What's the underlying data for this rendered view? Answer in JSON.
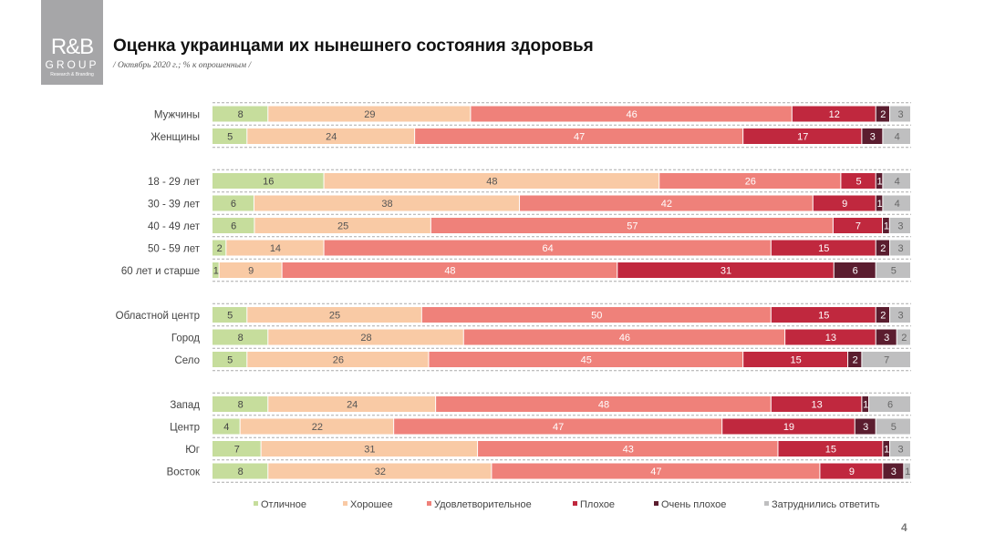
{
  "logo": {
    "line1": "R&B",
    "line2": "GROUP",
    "line3": "Research & Branding"
  },
  "header": {
    "title": "Оценка украинцами их нынешнего состояния здоровья",
    "subtitle": "/ Октябрь 2020 г.; % к опрошенным /"
  },
  "page_number": "4",
  "chart_data": {
    "type": "bar",
    "orientation": "horizontal",
    "stacked": true,
    "legend_position": "bottom",
    "series_names": [
      "Отличное",
      "Хорошее",
      "Удовлетворительное",
      "Плохое",
      "Очень плохое",
      "Затруднились ответить"
    ],
    "colors": [
      "#c6dd9c",
      "#f9caa5",
      "#ef817a",
      "#c0283e",
      "#5b1d2f",
      "#bfbfc0"
    ],
    "groups": [
      {
        "rows": [
          {
            "label": "Мужчины",
            "values": [
              8,
              29,
              46,
              12,
              2,
              3
            ]
          },
          {
            "label": "Женщины",
            "values": [
              5,
              24,
              47,
              17,
              3,
              4
            ]
          }
        ]
      },
      {
        "rows": [
          {
            "label": "18 - 29 лет",
            "values": [
              16,
              48,
              26,
              5,
              1,
              4
            ]
          },
          {
            "label": "30 - 39 лет",
            "values": [
              6,
              38,
              42,
              9,
              1,
              4
            ]
          },
          {
            "label": "40 - 49 лет",
            "values": [
              6,
              25,
              57,
              7,
              1,
              3
            ]
          },
          {
            "label": "50 - 59 лет",
            "values": [
              2,
              14,
              64,
              15,
              2,
              3
            ]
          },
          {
            "label": "60 лет и старше",
            "values": [
              1,
              9,
              48,
              31,
              6,
              5
            ]
          }
        ]
      },
      {
        "rows": [
          {
            "label": "Областной центр",
            "values": [
              5,
              25,
              50,
              15,
              2,
              3
            ]
          },
          {
            "label": "Город",
            "values": [
              8,
              28,
              46,
              13,
              3,
              2
            ]
          },
          {
            "label": "Село",
            "values": [
              5,
              26,
              45,
              15,
              2,
              7
            ]
          }
        ]
      },
      {
        "rows": [
          {
            "label": "Запад",
            "values": [
              8,
              24,
              48,
              13,
              1,
              6
            ]
          },
          {
            "label": "Центр",
            "values": [
              4,
              22,
              47,
              19,
              3,
              5
            ]
          },
          {
            "label": "Юг",
            "values": [
              7,
              31,
              43,
              15,
              1,
              3
            ]
          },
          {
            "label": "Восток",
            "values": [
              8,
              32,
              47,
              9,
              3,
              1
            ]
          }
        ]
      }
    ]
  }
}
